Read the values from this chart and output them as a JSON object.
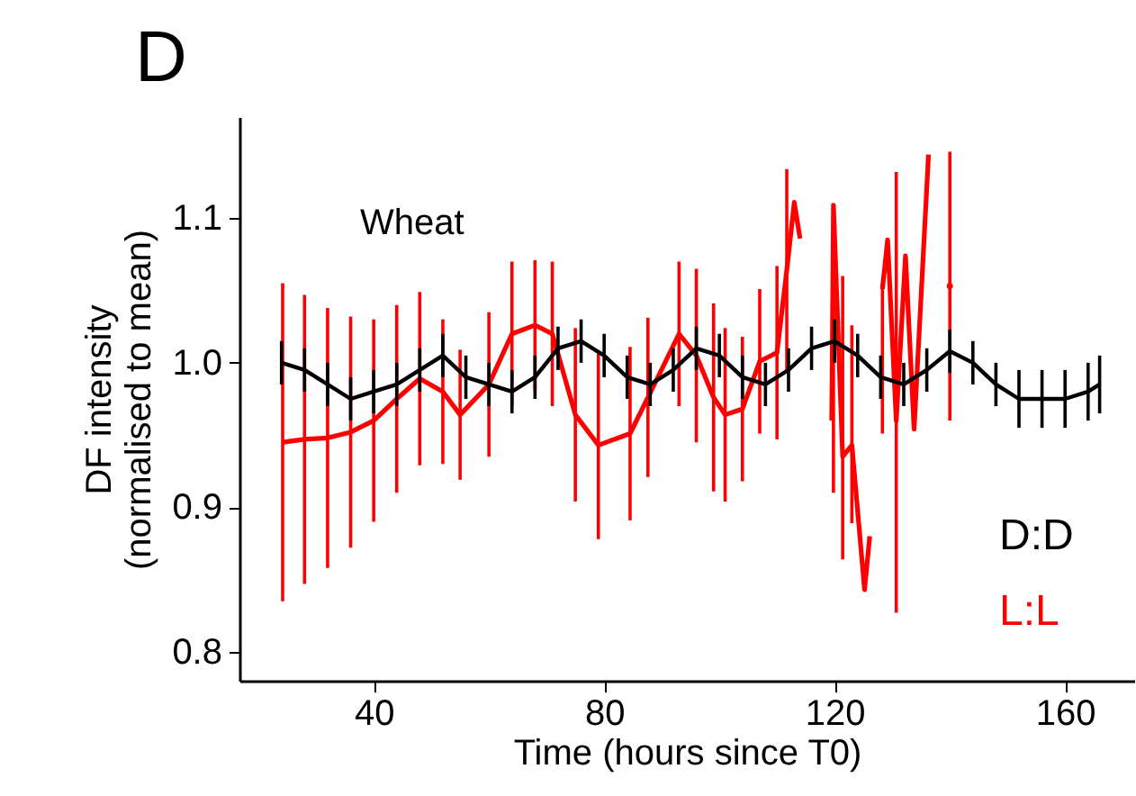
{
  "chart_data": {
    "type": "line",
    "title": "D",
    "xlabel": "Time (hours since T0)",
    "ylabel": "DF intensity\n(normalised to mean)",
    "annotations": [
      "Wheat"
    ],
    "xlim": [
      16.7,
      172
    ],
    "xticks": [
      40,
      80,
      120,
      160
    ],
    "ylim": [
      0.78,
      1.17
    ],
    "yticks": [
      {
        "value": 0.8,
        "label": "0.8"
      },
      {
        "value": 0.9,
        "label": "0.9"
      },
      {
        "value": 1.0,
        "label": "1.0"
      },
      {
        "value": 1.1,
        "label": "1.1"
      }
    ],
    "grid": false,
    "legend": "bottom right",
    "marker": "none",
    "line_style": "solid",
    "series": [
      {
        "name": "L:L",
        "color": "#ff0000",
        "x": [
          24.2,
          28,
          32,
          36,
          40,
          44,
          48,
          52,
          55,
          60,
          64,
          68,
          71,
          75,
          79,
          84.5,
          87.6,
          93,
          96,
          99,
          101,
          104,
          107,
          110,
          111.7,
          113,
          114,
          116,
          119.5,
          119.8,
          121.4,
          123,
          125.2,
          126.1,
          127,
          128.3,
          129.2,
          130.7,
          132.3,
          133.8,
          136.3,
          138,
          140
        ],
        "values": [
          0.945,
          0.947,
          0.948,
          0.952,
          0.96,
          0.975,
          0.989,
          0.98,
          0.964,
          0.985,
          1.02,
          1.026,
          1.02,
          0.964,
          0.943,
          0.951,
          0.976,
          1.02,
          1.005,
          0.976,
          0.964,
          0.968,
          1.001,
          1.007,
          1.064,
          1.111,
          1.086,
          null,
          0.96,
          1.109,
          0.935,
          0.943,
          0.843,
          0.88,
          null,
          1.051,
          1.085,
          0.96,
          1.074,
          0.954,
          1.144,
          null,
          1.053
        ],
        "errors": [
          0.11,
          0.1,
          0.09,
          0.08,
          0.07,
          0.065,
          0.06,
          0.05,
          0.045,
          0.05,
          0.05,
          0.045,
          0.05,
          0.06,
          0.065,
          0.06,
          0.055,
          0.05,
          0.06,
          0.065,
          0.06,
          0.05,
          0.05,
          0.06,
          0.07,
          null,
          null,
          null,
          null,
          [
            0.91,
            1.11
          ],
          [
            0.864,
            1.06
          ],
          [
            0.889,
            1.026
          ],
          null,
          null,
          null,
          [
            0.951,
            1.055
          ],
          null,
          [
            0.827,
            1.132
          ],
          null,
          null,
          null,
          null,
          0.093
        ]
      },
      {
        "name": "D:D",
        "color": "#000000",
        "x": [
          24,
          28,
          32,
          36,
          40,
          44,
          48,
          52,
          56,
          60,
          64,
          68,
          72,
          76,
          80,
          84,
          88,
          92,
          96,
          100,
          104,
          108,
          112,
          116,
          120,
          124,
          128,
          132,
          136,
          140,
          144,
          148,
          152,
          156,
          160,
          164,
          166
        ],
        "values": [
          1.0,
          0.995,
          0.985,
          0.975,
          0.98,
          0.985,
          0.995,
          1.005,
          0.99,
          0.985,
          0.98,
          0.99,
          1.01,
          1.015,
          1.005,
          0.99,
          0.985,
          0.995,
          1.01,
          1.005,
          0.99,
          0.985,
          0.995,
          1.01,
          1.015,
          1.005,
          0.99,
          0.985,
          0.995,
          1.008,
          1.0,
          0.985,
          0.975,
          0.975,
          0.975,
          0.98,
          0.985
        ],
        "errors": [
          0.015,
          0.015,
          0.015,
          0.015,
          0.015,
          0.015,
          0.015,
          0.015,
          0.015,
          0.015,
          0.015,
          0.015,
          0.015,
          0.015,
          0.015,
          0.015,
          0.015,
          0.015,
          0.015,
          0.015,
          0.015,
          0.015,
          0.015,
          0.015,
          0.015,
          0.015,
          0.015,
          0.015,
          0.015,
          0.015,
          0.015,
          0.015,
          0.02,
          0.02,
          0.02,
          0.02,
          0.02
        ]
      }
    ]
  }
}
